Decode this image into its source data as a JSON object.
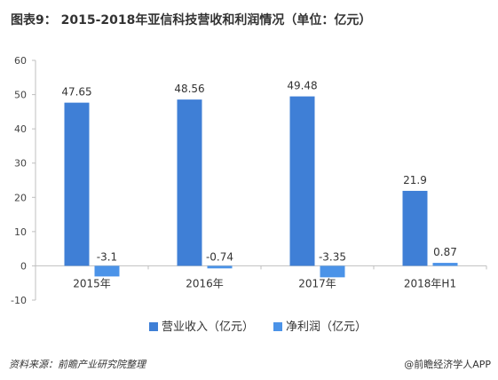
{
  "title": "图表9： 2015-2018年亚信科技营收和利润情况（单位：亿元）",
  "footer": {
    "source": "资料来源：前瞻产业研究院整理",
    "brand": "@前瞻经济学人APP"
  },
  "colors": {
    "revenue": "#3f7fd6",
    "profit": "#4b93e8"
  },
  "chart_data": {
    "type": "bar",
    "categories": [
      "2015年",
      "2016年",
      "2017年",
      "2018年H1"
    ],
    "series": [
      {
        "name": "营业收入（亿元）",
        "values": [
          47.65,
          48.56,
          49.48,
          21.9
        ],
        "labels": [
          "47.65",
          "48.56",
          "49.48",
          "21.9"
        ]
      },
      {
        "name": "净利润（亿元）",
        "values": [
          -3.1,
          -0.74,
          -3.35,
          0.87
        ],
        "labels": [
          "-3.1",
          "-0.74",
          "-3.35",
          "0.87"
        ]
      }
    ],
    "yticks": [
      -10,
      0,
      10,
      20,
      30,
      40,
      50,
      60
    ],
    "ylim": [
      -10,
      60
    ],
    "legend": "bottom",
    "grid": false
  }
}
